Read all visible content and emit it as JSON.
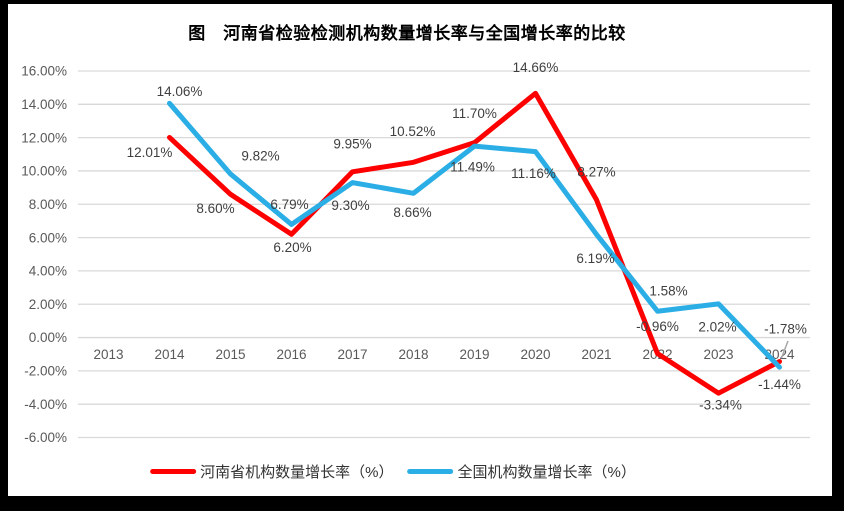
{
  "page": {
    "background": "#FFFFFF",
    "frame_color": "#000000"
  },
  "chart_data": {
    "type": "line",
    "title": "图　河南省检验检测机构数量增长率与全国增长率的比较",
    "categories": [
      "2013",
      "2014",
      "2015",
      "2016",
      "2017",
      "2018",
      "2019",
      "2020",
      "2021",
      "2022",
      "2023",
      "2024"
    ],
    "series": [
      {
        "name": "河南省机构数量增长率（%）",
        "color": "#FF0000",
        "start_index": 1,
        "values": [
          12.01,
          8.6,
          6.2,
          9.95,
          10.52,
          11.7,
          14.66,
          8.27,
          -0.96,
          -3.34,
          -1.44
        ],
        "point_labels": [
          "12.01%",
          "8.60%",
          "6.20%",
          "9.95%",
          "10.52%",
          "11.70%",
          "14.66%",
          "8.27%",
          "-0.96%",
          "-3.34%",
          "-1.44%"
        ]
      },
      {
        "name": "全国机构数量增长率（%）",
        "color": "#2BAEE5",
        "start_index": 1,
        "values": [
          14.06,
          9.82,
          6.79,
          9.3,
          8.66,
          11.49,
          11.16,
          6.19,
          1.58,
          2.02,
          -1.78
        ],
        "point_labels": [
          "14.06%",
          "9.82%",
          "6.79%",
          "9.30%",
          "8.66%",
          "11.49%",
          "11.16%",
          "6.19%",
          "1.58%",
          "2.02%",
          "-1.78%"
        ]
      }
    ],
    "ylim": [
      -6,
      16
    ],
    "ytick_step": 2,
    "ytick_labels": [
      "16.00%",
      "14.00%",
      "12.00%",
      "10.00%",
      "8.00%",
      "6.00%",
      "4.00%",
      "2.00%",
      "0.00%",
      "-2.00%",
      "-4.00%",
      "-6.00%"
    ],
    "grid": true,
    "data_labels": true,
    "legend_position": "bottom",
    "colors": {
      "gridline": "#D9D9D9",
      "axis_text": "#595959",
      "data_label_text": "#3F3F3F",
      "leader_line": "#A6A6A6"
    }
  }
}
